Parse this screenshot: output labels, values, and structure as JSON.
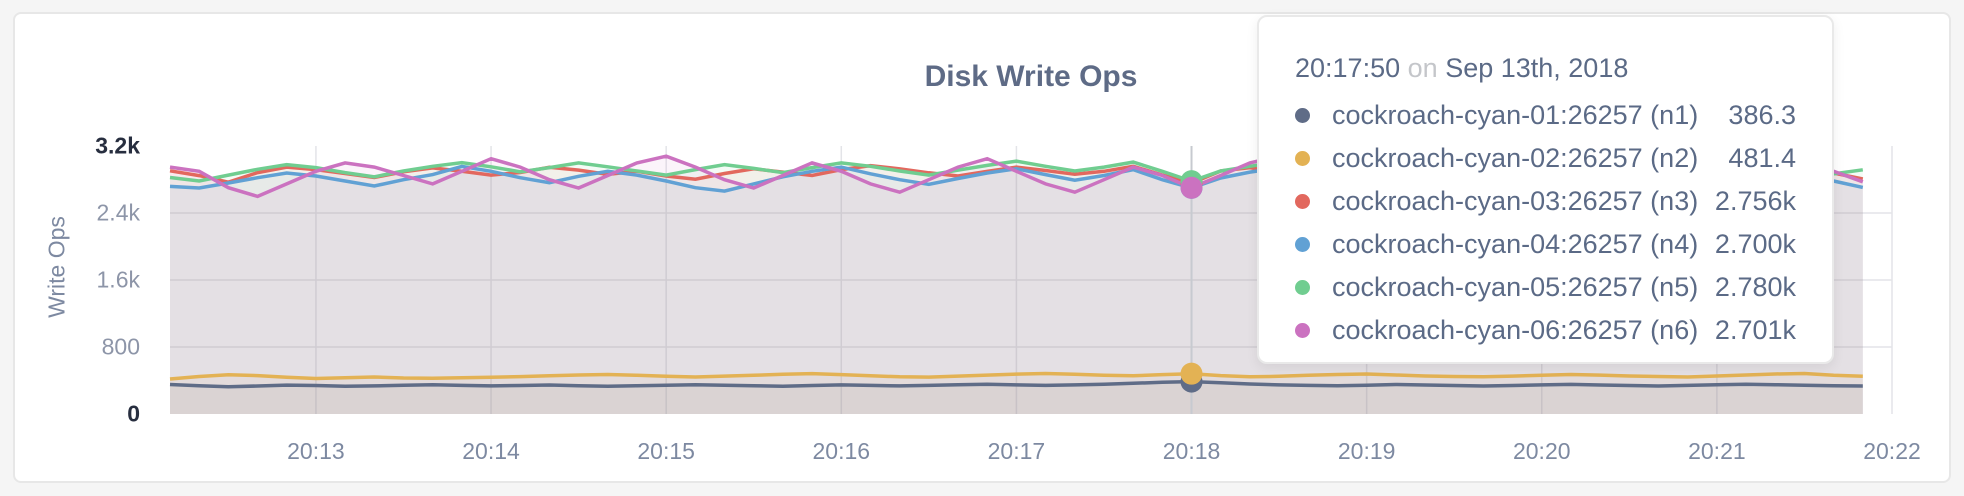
{
  "panel": {
    "title": "Disk Write Ops"
  },
  "axis": {
    "y_label": "Write Ops"
  },
  "tooltip": {
    "time": "20:17:50",
    "conjunction": "on",
    "date": "Sep 13th, 2018",
    "rows": [
      {
        "label": "cockroach-cyan-01:26257 (n1)",
        "value": "386.3"
      },
      {
        "label": "cockroach-cyan-02:26257 (n2)",
        "value": "481.4"
      },
      {
        "label": "cockroach-cyan-03:26257 (n3)",
        "value": "2.756k"
      },
      {
        "label": "cockroach-cyan-04:26257 (n4)",
        "value": "2.700k"
      },
      {
        "label": "cockroach-cyan-05:26257 (n5)",
        "value": "2.780k"
      },
      {
        "label": "cockroach-cyan-06:26257 (n6)",
        "value": "2.701k"
      }
    ]
  },
  "colors": {
    "grid": "#e3e4e8",
    "hover_line": "#c7cad0",
    "slate_text": "#5e6b86"
  },
  "chart_data": {
    "type": "line",
    "title": "Disk Write Ops",
    "xlabel": "",
    "ylabel": "Write Ops",
    "ylim": [
      0,
      3200
    ],
    "grid": true,
    "legend_position": "tooltip-top-right",
    "x_start": "20:12:10",
    "x_interval_seconds": 10,
    "x_domain_seconds": 590,
    "x_ticks": [
      {
        "label": "20:13",
        "seconds": 50
      },
      {
        "label": "20:14",
        "seconds": 110
      },
      {
        "label": "20:15",
        "seconds": 170
      },
      {
        "label": "20:16",
        "seconds": 230
      },
      {
        "label": "20:17",
        "seconds": 290
      },
      {
        "label": "20:18",
        "seconds": 350
      },
      {
        "label": "20:19",
        "seconds": 410
      },
      {
        "label": "20:20",
        "seconds": 470
      },
      {
        "label": "20:21",
        "seconds": 530
      },
      {
        "label": "20:22",
        "seconds": 590
      }
    ],
    "y_ticks": [
      {
        "value": 0,
        "label": "0",
        "emphasis": true
      },
      {
        "value": 800,
        "label": "800",
        "emphasis": false
      },
      {
        "value": 1600,
        "label": "1.6k",
        "emphasis": false
      },
      {
        "value": 2400,
        "label": "2.4k",
        "emphasis": false
      },
      {
        "value": 3200,
        "label": "3.2k",
        "emphasis": true
      }
    ],
    "hover": {
      "index": 35,
      "time": "20:17:50",
      "date": "Sep 13th, 2018"
    },
    "series": [
      {
        "name": "cockroach-cyan-01:26257 (n1)",
        "node": "n1",
        "color": "#5f6c87",
        "hover_value": 386.3,
        "values": [
          352,
          338,
          326,
          334,
          345,
          340,
          332,
          336,
          344,
          350,
          342,
          336,
          340,
          346,
          338,
          332,
          338,
          344,
          350,
          344,
          338,
          332,
          340,
          348,
          342,
          336,
          342,
          350,
          356,
          348,
          342,
          348,
          356,
          366,
          378,
          386.3,
          372,
          358,
          348,
          342,
          338,
          344,
          352,
          346,
          340,
          334,
          340,
          348,
          354,
          346,
          340,
          334,
          342,
          350,
          356,
          350,
          344,
          338,
          334
        ]
      },
      {
        "name": "cockroach-cyan-02:26257 (n2)",
        "node": "n2",
        "color": "#e3b254",
        "hover_value": 481.4,
        "values": [
          418,
          448,
          468,
          458,
          438,
          424,
          432,
          442,
          430,
          426,
          432,
          438,
          446,
          456,
          466,
          472,
          462,
          450,
          442,
          452,
          462,
          474,
          482,
          470,
          456,
          444,
          440,
          452,
          464,
          476,
          484,
          474,
          462,
          456,
          470,
          481.4,
          458,
          444,
          450,
          462,
          472,
          478,
          466,
          454,
          448,
          444,
          452,
          462,
          472,
          464,
          454,
          448,
          442,
          454,
          466,
          478,
          484,
          462,
          450
        ]
      },
      {
        "name": "cockroach-cyan-03:26257 (n3)",
        "node": "n3",
        "color": "#e2685e",
        "hover_value": 2756,
        "values": [
          2904,
          2846,
          2768,
          2882,
          2948,
          2918,
          2872,
          2824,
          2892,
          2938,
          2898,
          2852,
          2884,
          2946,
          2912,
          2862,
          2898,
          2842,
          2804,
          2872,
          2928,
          2888,
          2848,
          2918,
          2966,
          2928,
          2880,
          2842,
          2898,
          2948,
          2908,
          2862,
          2898,
          2958,
          2852,
          2756,
          2902,
          2942,
          2882,
          2832,
          2892,
          2948,
          2902,
          2852,
          2804,
          2872,
          2932,
          2958,
          2898,
          2852,
          2888,
          2938,
          2898,
          2852,
          2804,
          2862,
          2918,
          2878,
          2806
        ]
      },
      {
        "name": "cockroach-cyan-04:26257 (n4)",
        "node": "n4",
        "color": "#61a1d4",
        "hover_value": 2700,
        "values": [
          2718,
          2698,
          2758,
          2822,
          2878,
          2842,
          2782,
          2722,
          2798,
          2858,
          2956,
          2898,
          2822,
          2762,
          2838,
          2898,
          2852,
          2782,
          2702,
          2662,
          2748,
          2832,
          2898,
          2948,
          2868,
          2798,
          2742,
          2812,
          2878,
          2928,
          2858,
          2792,
          2848,
          2918,
          2798,
          2700,
          2818,
          2888,
          2938,
          2868,
          2798,
          2742,
          2808,
          2878,
          2918,
          2848,
          2782,
          2722,
          2798,
          2868,
          2928,
          2858,
          2792,
          2742,
          2808,
          2878,
          2838,
          2782,
          2706
        ]
      },
      {
        "name": "cockroach-cyan-05:26257 (n5)",
        "node": "n5",
        "color": "#70cd90",
        "hover_value": 2780,
        "values": [
          2824,
          2782,
          2852,
          2922,
          2978,
          2942,
          2882,
          2832,
          2902,
          2958,
          3002,
          2952,
          2892,
          2942,
          2998,
          2952,
          2902,
          2852,
          2918,
          2978,
          2932,
          2882,
          2942,
          2998,
          2958,
          2902,
          2852,
          2912,
          2968,
          3018,
          2958,
          2902,
          2948,
          3008,
          2898,
          2780,
          2902,
          2958,
          3012,
          2952,
          2892,
          2938,
          2988,
          2932,
          2872,
          2918,
          2978,
          3018,
          2958,
          2902,
          2948,
          2998,
          2938,
          2882,
          2928,
          2978,
          2922,
          2868,
          2916
        ]
      },
      {
        "name": "cockroach-cyan-06:26257 (n6)",
        "node": "n6",
        "color": "#cb72c0",
        "hover_value": 2701,
        "values": [
          2948,
          2898,
          2702,
          2598,
          2748,
          2898,
          2998,
          2948,
          2848,
          2748,
          2898,
          3048,
          2948,
          2798,
          2698,
          2848,
          2998,
          3078,
          2948,
          2798,
          2698,
          2848,
          2998,
          2898,
          2748,
          2648,
          2798,
          2948,
          3048,
          2898,
          2748,
          2648,
          2798,
          2948,
          2848,
          2701,
          2848,
          2998,
          3078,
          2918,
          2778,
          2678,
          2818,
          2958,
          3038,
          2898,
          2758,
          2678,
          2818,
          2958,
          3028,
          2888,
          2758,
          2698,
          2838,
          2978,
          3048,
          2898,
          2772
        ]
      }
    ]
  }
}
